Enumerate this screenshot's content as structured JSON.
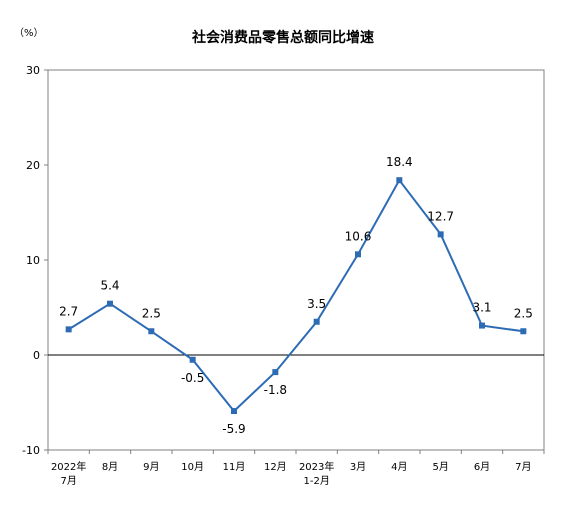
{
  "chart_data": {
    "type": "line",
    "title": "社会消费品零售总额同比增速",
    "unit_label": "（%）",
    "categories": [
      [
        "2022年",
        "7月"
      ],
      [
        "8月"
      ],
      [
        "9月"
      ],
      [
        "10月"
      ],
      [
        "11月"
      ],
      [
        "12月"
      ],
      [
        "2023年",
        "1-2月"
      ],
      [
        "3月"
      ],
      [
        "4月"
      ],
      [
        "5月"
      ],
      [
        "6月"
      ],
      [
        "7月"
      ]
    ],
    "values": [
      2.7,
      5.4,
      2.5,
      -0.5,
      -5.9,
      -1.8,
      3.5,
      10.6,
      18.4,
      12.7,
      3.1,
      2.5
    ],
    "data_labels": [
      "2.7",
      "5.4",
      "2.5",
      "-0.5",
      "-5.9",
      "-1.8",
      "3.5",
      "10.6",
      "18.4",
      "12.7",
      "3.1",
      "2.5"
    ],
    "ylim": [
      -10,
      30
    ],
    "yticks": [
      -10,
      0,
      10,
      20,
      30
    ],
    "ytick_labels": [
      "-10",
      "0",
      "10",
      "20",
      "30"
    ],
    "grid": false,
    "line_color": "#2d6cb5",
    "marker": "square"
  }
}
